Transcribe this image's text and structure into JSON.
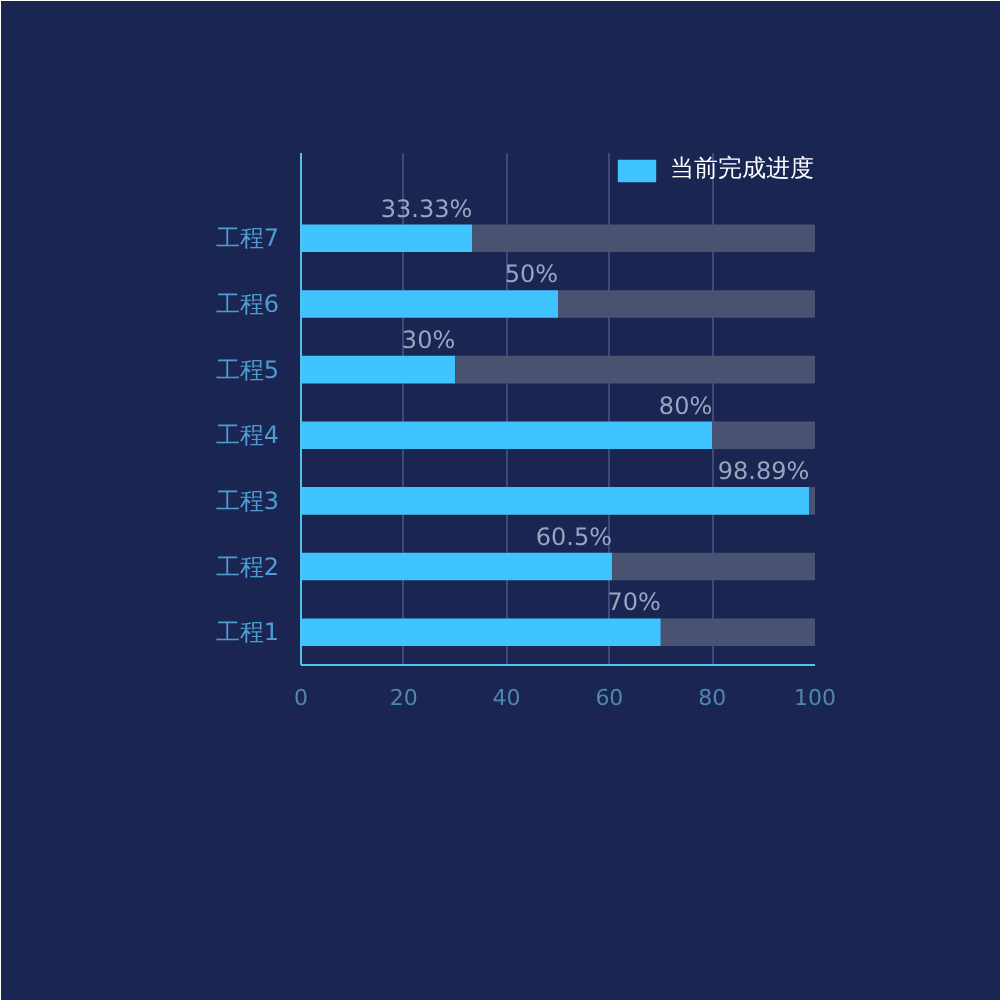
{
  "chart_data": {
    "type": "bar",
    "orientation": "horizontal",
    "stacked": true,
    "categories": [
      "工程7",
      "工程6",
      "工程5",
      "工程4",
      "工程3",
      "工程2",
      "工程1"
    ],
    "series": [
      {
        "name": "当前完成进度",
        "color": "#40c4ff",
        "values": [
          33.33,
          50,
          30,
          80,
          98.89,
          60.5,
          70
        ],
        "value_labels": [
          "33.33%",
          "50%",
          "30%",
          "80%",
          "98.89%",
          "60.5%",
          "70%"
        ]
      },
      {
        "color": "#4a5272",
        "values": [
          66.67,
          50,
          70,
          20,
          1.11,
          39.5,
          30
        ]
      }
    ],
    "xlim": [
      0,
      100
    ],
    "xticks": [
      0,
      20,
      40,
      60,
      80,
      100
    ],
    "grid": "x",
    "legend": "top right"
  }
}
